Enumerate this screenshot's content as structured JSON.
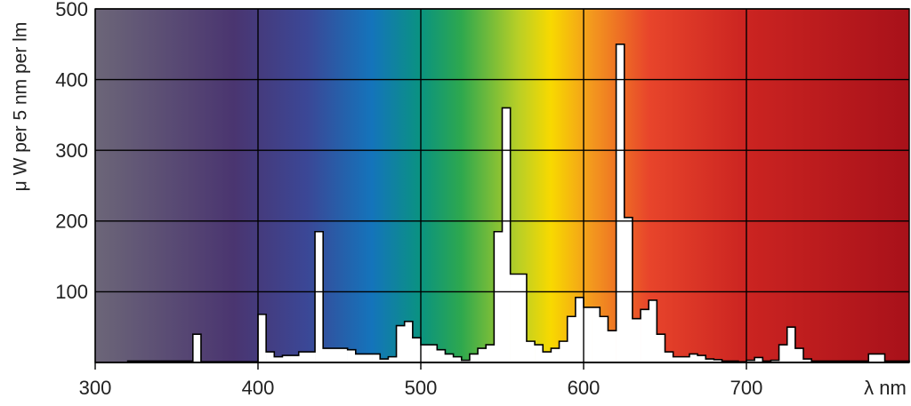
{
  "chart_data": {
    "type": "histogram",
    "ylabel": "μ W per 5 nm per lm",
    "xlabel": "λ nm",
    "bins": [
      320,
      325,
      330,
      335,
      340,
      345,
      350,
      355,
      360,
      365,
      370,
      375,
      380,
      385,
      390,
      395,
      400,
      405,
      410,
      415,
      420,
      425,
      430,
      435,
      440,
      445,
      450,
      455,
      460,
      465,
      470,
      475,
      480,
      485,
      490,
      495,
      500,
      505,
      510,
      515,
      520,
      525,
      530,
      535,
      540,
      545,
      550,
      555,
      560,
      565,
      570,
      575,
      580,
      585,
      590,
      595,
      600,
      605,
      610,
      615,
      620,
      625,
      630,
      635,
      640,
      645,
      650,
      655,
      660,
      665,
      670,
      675,
      680,
      685,
      690,
      695,
      700,
      705,
      710,
      715,
      720,
      725,
      730,
      735,
      740,
      745,
      750,
      755,
      760,
      765,
      770,
      775,
      780,
      785,
      790,
      795,
      800
    ],
    "values": [
      2,
      2,
      2,
      2,
      2,
      2,
      2,
      2,
      40,
      1,
      1,
      1,
      1,
      1,
      1,
      1,
      68,
      15,
      8,
      10,
      10,
      15,
      15,
      185,
      20,
      20,
      20,
      18,
      12,
      12,
      12,
      5,
      8,
      52,
      58,
      35,
      25,
      25,
      18,
      12,
      8,
      3,
      12,
      20,
      25,
      185,
      360,
      125,
      125,
      30,
      25,
      15,
      20,
      30,
      65,
      92,
      78,
      78,
      65,
      45,
      450,
      205,
      62,
      75,
      88,
      40,
      15,
      8,
      8,
      12,
      10,
      5,
      4,
      2,
      2,
      1,
      3,
      7,
      2,
      3,
      25,
      50,
      20,
      5,
      2,
      2,
      2,
      2,
      2,
      2,
      2,
      12,
      12,
      2,
      2,
      2
    ],
    "color": "#ffffff",
    "xlim": [
      300,
      800
    ],
    "xticks": [
      300,
      400,
      500,
      600,
      700
    ],
    "ylim": [
      0,
      500
    ],
    "yticks": [
      100,
      200,
      300,
      400,
      500
    ],
    "grid": true
  }
}
